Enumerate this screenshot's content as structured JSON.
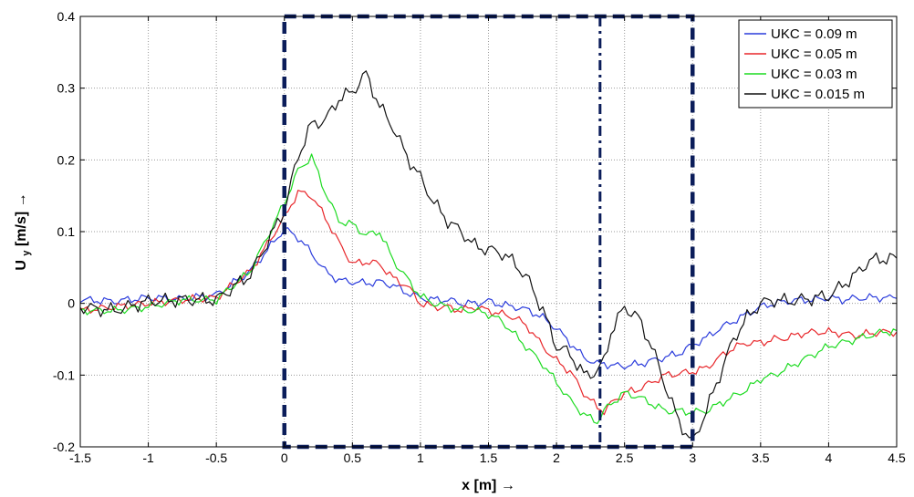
{
  "chart_data": {
    "type": "line",
    "title": "",
    "xlabel": "x [m] →",
    "ylabel": "U",
    "ylabel_subscript": "y",
    "ylabel_suffix": " [m/s] →",
    "xlim": [
      -1.5,
      4.5
    ],
    "ylim": [
      -0.2,
      0.4
    ],
    "xticks": [
      -1.5,
      -1,
      -0.5,
      0,
      0.5,
      1,
      1.5,
      2,
      2.5,
      3,
      3.5,
      4,
      4.5
    ],
    "xtick_labels": [
      "-1.5",
      "-1",
      "-0.5",
      "0",
      "0.5",
      "1",
      "1.5",
      "2",
      "2.5",
      "3",
      "3.5",
      "4",
      "4.5"
    ],
    "yticks": [
      -0.2,
      -0.1,
      0,
      0.1,
      0.2,
      0.3,
      0.4
    ],
    "ytick_labels": [
      "-0.2",
      "-0.1",
      "0",
      "0.1",
      "0.2",
      "0.3",
      "0.4"
    ],
    "grid": true,
    "legend_position": "top-right",
    "annotations": {
      "dashed_box": {
        "x": [
          0,
          3
        ],
        "y": [
          -0.2,
          0.4
        ],
        "color": "#0b1d5a"
      },
      "dashdot_line": {
        "x": 2.32,
        "color": "#0b1d5a"
      }
    },
    "x": [
      -1.5,
      -1.25,
      -1.0,
      -0.75,
      -0.5,
      -0.25,
      0.0,
      0.1,
      0.2,
      0.3,
      0.4,
      0.5,
      0.6,
      0.7,
      0.8,
      0.9,
      1.0,
      1.1,
      1.2,
      1.3,
      1.4,
      1.5,
      1.6,
      1.7,
      1.8,
      1.9,
      2.0,
      2.1,
      2.2,
      2.3,
      2.35,
      2.4,
      2.5,
      2.6,
      2.7,
      2.8,
      2.9,
      3.0,
      3.1,
      3.2,
      3.3,
      3.4,
      3.5,
      3.6,
      3.7,
      3.8,
      3.9,
      4.0,
      4.1,
      4.2,
      4.3,
      4.4,
      4.5
    ],
    "series": [
      {
        "name": "UKC = 0.09 m",
        "color": "#2a3bdc",
        "values": [
          0.005,
          0.003,
          0.008,
          0.006,
          0.012,
          0.045,
          0.104,
          0.092,
          0.07,
          0.045,
          0.032,
          0.03,
          0.028,
          0.03,
          0.025,
          0.015,
          0.008,
          0.005,
          0.005,
          0.0,
          0.0,
          0.003,
          -0.002,
          -0.005,
          -0.01,
          -0.02,
          -0.035,
          -0.055,
          -0.075,
          -0.085,
          -0.083,
          -0.087,
          -0.087,
          -0.085,
          -0.08,
          -0.075,
          -0.07,
          -0.058,
          -0.048,
          -0.035,
          -0.025,
          -0.015,
          -0.005,
          0.0,
          0.003,
          0.005,
          0.005,
          0.008,
          0.005,
          0.007,
          0.008,
          0.008,
          0.007
        ]
      },
      {
        "name": "UKC = 0.05 m",
        "color": "#e8262a",
        "values": [
          -0.01,
          -0.005,
          0.0,
          0.005,
          0.008,
          0.045,
          0.12,
          0.155,
          0.15,
          0.12,
          0.085,
          0.055,
          0.058,
          0.055,
          0.035,
          0.025,
          0.0,
          -0.005,
          -0.005,
          -0.01,
          -0.005,
          -0.01,
          -0.015,
          -0.02,
          -0.035,
          -0.06,
          -0.08,
          -0.095,
          -0.125,
          -0.145,
          -0.15,
          -0.14,
          -0.125,
          -0.12,
          -0.11,
          -0.1,
          -0.098,
          -0.095,
          -0.09,
          -0.075,
          -0.062,
          -0.055,
          -0.055,
          -0.05,
          -0.048,
          -0.042,
          -0.04,
          -0.04,
          -0.042,
          -0.045,
          -0.042,
          -0.04,
          -0.04
        ]
      },
      {
        "name": "UKC = 0.03 m",
        "color": "#1ddb21",
        "values": [
          -0.01,
          -0.01,
          -0.005,
          0.005,
          0.005,
          0.045,
          0.14,
          0.185,
          0.205,
          0.155,
          0.115,
          0.11,
          0.095,
          0.1,
          0.06,
          0.035,
          0.01,
          0.0,
          -0.005,
          -0.01,
          -0.01,
          -0.015,
          -0.025,
          -0.045,
          -0.065,
          -0.085,
          -0.11,
          -0.135,
          -0.155,
          -0.165,
          -0.15,
          -0.14,
          -0.125,
          -0.13,
          -0.14,
          -0.15,
          -0.15,
          -0.152,
          -0.15,
          -0.14,
          -0.13,
          -0.12,
          -0.105,
          -0.1,
          -0.09,
          -0.08,
          -0.07,
          -0.06,
          -0.055,
          -0.05,
          -0.045,
          -0.04,
          -0.038
        ]
      },
      {
        "name": "UKC = 0.015 m",
        "color": "#111111",
        "values": [
          -0.005,
          -0.01,
          0.003,
          0.005,
          0.005,
          0.04,
          0.13,
          0.205,
          0.25,
          0.255,
          0.285,
          0.295,
          0.32,
          0.275,
          0.245,
          0.205,
          0.175,
          0.14,
          0.115,
          0.1,
          0.08,
          0.075,
          0.07,
          0.055,
          0.03,
          -0.01,
          -0.06,
          -0.07,
          -0.1,
          -0.095,
          -0.08,
          -0.04,
          -0.005,
          -0.02,
          -0.06,
          -0.115,
          -0.165,
          -0.195,
          -0.15,
          -0.1,
          -0.05,
          -0.02,
          0.0,
          0.005,
          0.003,
          0.005,
          0.008,
          0.01,
          0.025,
          0.04,
          0.06,
          0.062,
          0.063
        ]
      }
    ]
  }
}
